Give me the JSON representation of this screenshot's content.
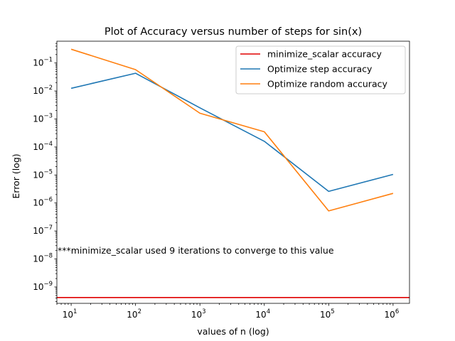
{
  "chart_data": {
    "type": "line",
    "title": "Plot of Accuracy versus number of steps for sin(x)",
    "xlabel": "values of n (log)",
    "ylabel": "Error (log)",
    "xscale": "log",
    "yscale": "log",
    "xlim": [
      6,
      1800000
    ],
    "ylim": [
      2.6e-10,
      0.6
    ],
    "grid": false,
    "legend_position": "top-right",
    "x_ticks": [
      {
        "base": "10",
        "exp": "1",
        "value": 10
      },
      {
        "base": "10",
        "exp": "2",
        "value": 100
      },
      {
        "base": "10",
        "exp": "3",
        "value": 1000
      },
      {
        "base": "10",
        "exp": "4",
        "value": 10000
      },
      {
        "base": "10",
        "exp": "5",
        "value": 100000
      },
      {
        "base": "10",
        "exp": "6",
        "value": 1000000
      }
    ],
    "y_ticks": [
      {
        "base": "10",
        "exp": "−9",
        "value": 1e-09
      },
      {
        "base": "10",
        "exp": "−8",
        "value": 1e-08
      },
      {
        "base": "10",
        "exp": "−7",
        "value": 1e-07
      },
      {
        "base": "10",
        "exp": "−6",
        "value": 1e-06
      },
      {
        "base": "10",
        "exp": "−5",
        "value": 1e-05
      },
      {
        "base": "10",
        "exp": "−4",
        "value": 0.0001
      },
      {
        "base": "10",
        "exp": "−3",
        "value": 0.001
      },
      {
        "base": "10",
        "exp": "−2",
        "value": 0.01
      },
      {
        "base": "10",
        "exp": "−1",
        "value": 0.1
      }
    ],
    "series": [
      {
        "name": "minimize_scalar accuracy",
        "color": "#e00000",
        "kind": "hline",
        "y": 4.2e-10
      },
      {
        "name": "Optimize step accuracy",
        "color": "#1f77b4",
        "x": [
          10,
          100,
          1000,
          10000,
          100000,
          1000000
        ],
        "y": [
          0.0125,
          0.043,
          0.0025,
          0.00016,
          2.6e-06,
          1.05e-05
        ]
      },
      {
        "name": "Optimize random accuracy",
        "color": "#ff7f0e",
        "x": [
          10,
          100,
          1000,
          10000,
          100000,
          1000000
        ],
        "y": [
          0.31,
          0.058,
          0.0016,
          0.00035,
          5.2e-07,
          2.2e-06
        ]
      }
    ],
    "annotation": "***minimize_scalar used 9 iterations to converge to this value"
  }
}
